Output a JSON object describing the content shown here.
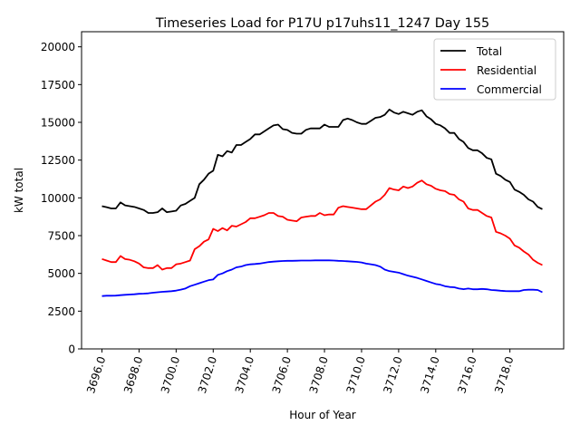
{
  "chart_data": {
    "type": "line",
    "title": "Timeseries Load for P17U p17uhs11_1247  Day 155",
    "xlabel": "Hour of Year",
    "ylabel": "kW total",
    "xlim": [
      3694.9,
      3720.9
    ],
    "ylim": [
      0,
      21000
    ],
    "xticks": [
      3696,
      3698,
      3700,
      3702,
      3704,
      3706,
      3708,
      3710,
      3712,
      3714,
      3716,
      3718
    ],
    "xtick_labels": [
      "3696.0",
      "3698.0",
      "3700.0",
      "3702.0",
      "3704.0",
      "3706.0",
      "3708.0",
      "3710.0",
      "3712.0",
      "3714.0",
      "3716.0",
      "3718.0"
    ],
    "yticks": [
      0,
      2500,
      5000,
      7500,
      10000,
      12500,
      15000,
      17500,
      20000
    ],
    "ytick_labels": [
      "0",
      "2500",
      "5000",
      "7500",
      "10000",
      "12500",
      "15000",
      "17500",
      "20000"
    ],
    "grid": false,
    "legend_position": "top-right",
    "x_start": 3696.0,
    "x_step": 0.25,
    "series": [
      {
        "name": "Total",
        "color": "#000000",
        "values": [
          9450,
          9380,
          9300,
          9300,
          9700,
          9500,
          9450,
          9400,
          9300,
          9200,
          9000,
          9000,
          9050,
          9300,
          9050,
          9100,
          9150,
          9500,
          9600,
          9800,
          10000,
          10900,
          11200,
          11600,
          11800,
          12850,
          12750,
          13100,
          13000,
          13500,
          13500,
          13700,
          13900,
          14200,
          14200,
          14400,
          14600,
          14800,
          14850,
          14550,
          14500,
          14300,
          14250,
          14250,
          14500,
          14600,
          14600,
          14600,
          14850,
          14700,
          14700,
          14700,
          15150,
          15250,
          15150,
          15000,
          14900,
          14900,
          15100,
          15300,
          15350,
          15500,
          15850,
          15650,
          15550,
          15700,
          15600,
          15500,
          15700,
          15800,
          15400,
          15200,
          14900,
          14800,
          14600,
          14300,
          14300,
          13900,
          13700,
          13300,
          13150,
          13150,
          12950,
          12650,
          12550,
          11600,
          11450,
          11200,
          11050,
          10550,
          10400,
          10200,
          9900,
          9750,
          9400,
          9250
        ]
      },
      {
        "name": "Residential",
        "color": "#ff0000",
        "values": [
          5950,
          5850,
          5750,
          5750,
          6150,
          5950,
          5900,
          5800,
          5650,
          5400,
          5350,
          5350,
          5550,
          5250,
          5350,
          5350,
          5600,
          5650,
          5750,
          5850,
          6600,
          6800,
          7100,
          7250,
          7950,
          7800,
          8000,
          7850,
          8150,
          8100,
          8250,
          8400,
          8650,
          8650,
          8750,
          8850,
          9000,
          9000,
          8800,
          8750,
          8550,
          8500,
          8450,
          8700,
          8750,
          8800,
          8800,
          9000,
          8850,
          8900,
          8900,
          9350,
          9450,
          9400,
          9350,
          9300,
          9250,
          9250,
          9500,
          9750,
          9900,
          10200,
          10650,
          10550,
          10500,
          10750,
          10650,
          10750,
          11000,
          11150,
          10900,
          10800,
          10600,
          10500,
          10450,
          10250,
          10200,
          9900,
          9750,
          9300,
          9200,
          9200,
          9000,
          8800,
          8700,
          7750,
          7650,
          7500,
          7300,
          6850,
          6700,
          6450,
          6250,
          5900,
          5700,
          5550
        ]
      },
      {
        "name": "Commercial",
        "color": "#0000ff",
        "values": [
          3500,
          3520,
          3520,
          3530,
          3560,
          3580,
          3600,
          3620,
          3650,
          3660,
          3680,
          3720,
          3750,
          3780,
          3800,
          3820,
          3860,
          3920,
          4000,
          4150,
          4250,
          4350,
          4450,
          4550,
          4600,
          4900,
          5000,
          5150,
          5250,
          5400,
          5450,
          5550,
          5600,
          5620,
          5650,
          5700,
          5750,
          5780,
          5800,
          5820,
          5830,
          5830,
          5840,
          5850,
          5850,
          5850,
          5860,
          5860,
          5860,
          5860,
          5850,
          5830,
          5820,
          5800,
          5780,
          5760,
          5720,
          5650,
          5600,
          5550,
          5450,
          5250,
          5150,
          5100,
          5050,
          4950,
          4850,
          4780,
          4700,
          4600,
          4500,
          4400,
          4300,
          4250,
          4150,
          4100,
          4080,
          4000,
          3950,
          4000,
          3950,
          3950,
          3970,
          3950,
          3900,
          3880,
          3850,
          3830,
          3820,
          3820,
          3820,
          3900,
          3920,
          3920,
          3900,
          3750
        ]
      }
    ]
  }
}
